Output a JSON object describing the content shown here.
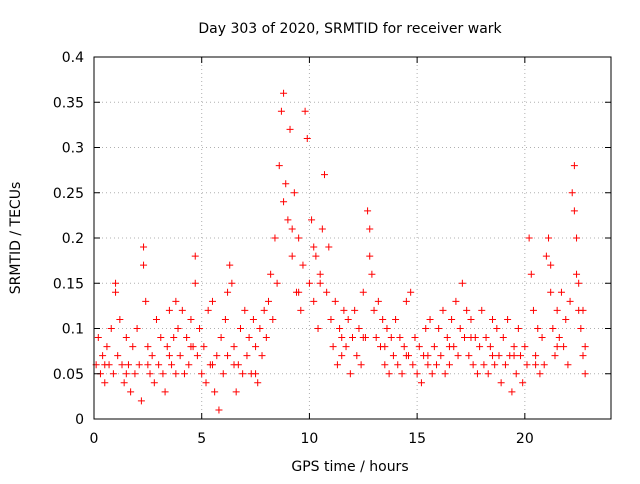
{
  "chart_data": {
    "type": "scatter",
    "title": "Day 303 of 2020, SRMTID for receiver wark",
    "xlabel": "GPS time / hours",
    "ylabel": "SRMTID / TECUs",
    "xlim": [
      0,
      24
    ],
    "ylim": [
      0,
      0.4
    ],
    "xticks": [
      0,
      5,
      10,
      15,
      20
    ],
    "xtick_labels": [
      "0",
      "5",
      "10",
      "15",
      "20"
    ],
    "yticks": [
      0,
      0.05,
      0.1,
      0.15,
      0.2,
      0.25,
      0.3,
      0.35,
      0.4
    ],
    "ytick_labels": [
      "0",
      "0.05",
      "0.1",
      "0.15",
      "0.2",
      "0.25",
      "0.3",
      "0.35",
      "0.4"
    ],
    "grid": true,
    "marker": "+",
    "marker_color": "#ff0000",
    "series": [
      {
        "name": "SRMTID",
        "points": [
          [
            0.1,
            0.06
          ],
          [
            0.2,
            0.09
          ],
          [
            0.3,
            0.05
          ],
          [
            0.4,
            0.07
          ],
          [
            0.5,
            0.04
          ],
          [
            0.6,
            0.08
          ],
          [
            0.7,
            0.06
          ],
          [
            0.8,
            0.1
          ],
          [
            0.9,
            0.05
          ],
          [
            1.0,
            0.14
          ],
          [
            1.0,
            0.15
          ],
          [
            1.1,
            0.07
          ],
          [
            1.2,
            0.11
          ],
          [
            1.3,
            0.06
          ],
          [
            1.4,
            0.04
          ],
          [
            1.5,
            0.09
          ],
          [
            1.6,
            0.06
          ],
          [
            1.7,
            0.03
          ],
          [
            1.8,
            0.08
          ],
          [
            1.9,
            0.05
          ],
          [
            2.0,
            0.1
          ],
          [
            2.1,
            0.06
          ],
          [
            2.2,
            0.02
          ],
          [
            2.3,
            0.19
          ],
          [
            2.3,
            0.17
          ],
          [
            2.4,
            0.13
          ],
          [
            2.5,
            0.08
          ],
          [
            2.6,
            0.05
          ],
          [
            2.7,
            0.07
          ],
          [
            2.8,
            0.04
          ],
          [
            2.9,
            0.11
          ],
          [
            3.0,
            0.06
          ],
          [
            3.1,
            0.09
          ],
          [
            3.2,
            0.05
          ],
          [
            3.3,
            0.03
          ],
          [
            3.4,
            0.08
          ],
          [
            3.5,
            0.12
          ],
          [
            3.6,
            0.06
          ],
          [
            3.7,
            0.09
          ],
          [
            3.8,
            0.05
          ],
          [
            3.9,
            0.1
          ],
          [
            4.0,
            0.07
          ],
          [
            4.1,
            0.12
          ],
          [
            4.2,
            0.05
          ],
          [
            4.3,
            0.09
          ],
          [
            4.4,
            0.06
          ],
          [
            4.5,
            0.11
          ],
          [
            4.6,
            0.08
          ],
          [
            4.7,
            0.15
          ],
          [
            4.7,
            0.18
          ],
          [
            4.8,
            0.07
          ],
          [
            4.9,
            0.1
          ],
          [
            5.0,
            0.05
          ],
          [
            5.1,
            0.08
          ],
          [
            5.2,
            0.04
          ],
          [
            5.3,
            0.12
          ],
          [
            5.4,
            0.06
          ],
          [
            5.5,
            0.13
          ],
          [
            5.6,
            0.03
          ],
          [
            5.7,
            0.07
          ],
          [
            5.8,
            0.01
          ],
          [
            5.9,
            0.09
          ],
          [
            6.0,
            0.05
          ],
          [
            6.1,
            0.11
          ],
          [
            6.2,
            0.07
          ],
          [
            6.3,
            0.17
          ],
          [
            6.4,
            0.15
          ],
          [
            6.5,
            0.08
          ],
          [
            6.6,
            0.03
          ],
          [
            6.7,
            0.06
          ],
          [
            6.8,
            0.1
          ],
          [
            6.9,
            0.05
          ],
          [
            7.0,
            0.12
          ],
          [
            7.1,
            0.07
          ],
          [
            7.2,
            0.09
          ],
          [
            7.3,
            0.05
          ],
          [
            7.4,
            0.11
          ],
          [
            7.5,
            0.08
          ],
          [
            7.6,
            0.04
          ],
          [
            7.7,
            0.1
          ],
          [
            7.8,
            0.07
          ],
          [
            7.9,
            0.12
          ],
          [
            8.0,
            0.09
          ],
          [
            8.1,
            0.13
          ],
          [
            8.2,
            0.16
          ],
          [
            8.3,
            0.11
          ],
          [
            8.4,
            0.2
          ],
          [
            8.5,
            0.15
          ],
          [
            8.6,
            0.28
          ],
          [
            8.7,
            0.34
          ],
          [
            8.8,
            0.36
          ],
          [
            8.9,
            0.26
          ],
          [
            9.0,
            0.22
          ],
          [
            9.1,
            0.32
          ],
          [
            9.2,
            0.18
          ],
          [
            9.3,
            0.25
          ],
          [
            9.4,
            0.14
          ],
          [
            9.5,
            0.2
          ],
          [
            9.6,
            0.12
          ],
          [
            9.7,
            0.17
          ],
          [
            9.8,
            0.34
          ],
          [
            9.9,
            0.31
          ],
          [
            10.0,
            0.15
          ],
          [
            10.1,
            0.22
          ],
          [
            10.2,
            0.13
          ],
          [
            10.3,
            0.18
          ],
          [
            10.4,
            0.1
          ],
          [
            10.5,
            0.16
          ],
          [
            10.6,
            0.21
          ],
          [
            10.7,
            0.27
          ],
          [
            10.8,
            0.14
          ],
          [
            10.9,
            0.19
          ],
          [
            11.0,
            0.11
          ],
          [
            11.1,
            0.08
          ],
          [
            11.2,
            0.13
          ],
          [
            11.3,
            0.06
          ],
          [
            11.4,
            0.1
          ],
          [
            11.5,
            0.07
          ],
          [
            11.6,
            0.12
          ],
          [
            11.7,
            0.08
          ],
          [
            11.8,
            0.11
          ],
          [
            11.9,
            0.05
          ],
          [
            12.0,
            0.09
          ],
          [
            12.1,
            0.12
          ],
          [
            12.2,
            0.07
          ],
          [
            12.3,
            0.1
          ],
          [
            12.4,
            0.06
          ],
          [
            12.5,
            0.14
          ],
          [
            12.6,
            0.09
          ],
          [
            12.7,
            0.23
          ],
          [
            12.8,
            0.21
          ],
          [
            12.9,
            0.16
          ],
          [
            13.0,
            0.12
          ],
          [
            13.1,
            0.09
          ],
          [
            13.2,
            0.13
          ],
          [
            13.3,
            0.08
          ],
          [
            13.4,
            0.11
          ],
          [
            13.5,
            0.06
          ],
          [
            13.6,
            0.1
          ],
          [
            13.7,
            0.05
          ],
          [
            13.8,
            0.09
          ],
          [
            13.9,
            0.07
          ],
          [
            14.0,
            0.11
          ],
          [
            14.1,
            0.06
          ],
          [
            14.2,
            0.09
          ],
          [
            14.3,
            0.05
          ],
          [
            14.4,
            0.08
          ],
          [
            14.5,
            0.13
          ],
          [
            14.6,
            0.07
          ],
          [
            14.7,
            0.14
          ],
          [
            14.8,
            0.06
          ],
          [
            14.9,
            0.09
          ],
          [
            15.0,
            0.05
          ],
          [
            15.1,
            0.08
          ],
          [
            15.2,
            0.04
          ],
          [
            15.3,
            0.07
          ],
          [
            15.4,
            0.1
          ],
          [
            15.5,
            0.06
          ],
          [
            15.6,
            0.11
          ],
          [
            15.7,
            0.05
          ],
          [
            15.8,
            0.08
          ],
          [
            15.9,
            0.06
          ],
          [
            16.0,
            0.1
          ],
          [
            16.1,
            0.07
          ],
          [
            16.2,
            0.12
          ],
          [
            16.3,
            0.05
          ],
          [
            16.4,
            0.09
          ],
          [
            16.5,
            0.06
          ],
          [
            16.6,
            0.11
          ],
          [
            16.7,
            0.08
          ],
          [
            16.8,
            0.13
          ],
          [
            16.9,
            0.07
          ],
          [
            17.0,
            0.1
          ],
          [
            17.1,
            0.15
          ],
          [
            17.2,
            0.09
          ],
          [
            17.3,
            0.12
          ],
          [
            17.4,
            0.07
          ],
          [
            17.5,
            0.11
          ],
          [
            17.6,
            0.06
          ],
          [
            17.7,
            0.09
          ],
          [
            17.8,
            0.05
          ],
          [
            17.9,
            0.08
          ],
          [
            18.0,
            0.12
          ],
          [
            18.1,
            0.06
          ],
          [
            18.2,
            0.09
          ],
          [
            18.3,
            0.05
          ],
          [
            18.4,
            0.08
          ],
          [
            18.5,
            0.11
          ],
          [
            18.6,
            0.06
          ],
          [
            18.7,
            0.1
          ],
          [
            18.8,
            0.07
          ],
          [
            18.9,
            0.04
          ],
          [
            19.0,
            0.09
          ],
          [
            19.1,
            0.06
          ],
          [
            19.2,
            0.11
          ],
          [
            19.3,
            0.07
          ],
          [
            19.4,
            0.03
          ],
          [
            19.5,
            0.08
          ],
          [
            19.6,
            0.05
          ],
          [
            19.7,
            0.1
          ],
          [
            19.8,
            0.07
          ],
          [
            19.9,
            0.04
          ],
          [
            20.0,
            0.08
          ],
          [
            20.1,
            0.06
          ],
          [
            20.2,
            0.2
          ],
          [
            20.3,
            0.16
          ],
          [
            20.4,
            0.12
          ],
          [
            20.5,
            0.07
          ],
          [
            20.6,
            0.1
          ],
          [
            20.7,
            0.05
          ],
          [
            20.8,
            0.09
          ],
          [
            20.9,
            0.06
          ],
          [
            21.0,
            0.18
          ],
          [
            21.1,
            0.2
          ],
          [
            21.2,
            0.14
          ],
          [
            21.3,
            0.1
          ],
          [
            21.4,
            0.07
          ],
          [
            21.5,
            0.12
          ],
          [
            21.6,
            0.09
          ],
          [
            21.7,
            0.14
          ],
          [
            21.8,
            0.08
          ],
          [
            21.9,
            0.11
          ],
          [
            22.0,
            0.06
          ],
          [
            22.1,
            0.13
          ],
          [
            22.2,
            0.25
          ],
          [
            22.3,
            0.28
          ],
          [
            22.3,
            0.23
          ],
          [
            22.4,
            0.2
          ],
          [
            22.5,
            0.15
          ],
          [
            22.6,
            0.1
          ],
          [
            22.7,
            0.07
          ],
          [
            22.7,
            0.12
          ],
          [
            22.8,
            0.05
          ],
          [
            22.8,
            0.08
          ],
          [
            0.5,
            0.06
          ],
          [
            1.5,
            0.05
          ],
          [
            2.5,
            0.06
          ],
          [
            3.5,
            0.07
          ],
          [
            4.5,
            0.08
          ],
          [
            5.5,
            0.06
          ],
          [
            6.5,
            0.06
          ],
          [
            7.5,
            0.05
          ],
          [
            9.5,
            0.14
          ],
          [
            10.5,
            0.15
          ],
          [
            11.5,
            0.09
          ],
          [
            12.5,
            0.09
          ],
          [
            13.5,
            0.08
          ],
          [
            14.5,
            0.07
          ],
          [
            15.5,
            0.07
          ],
          [
            16.5,
            0.08
          ],
          [
            17.5,
            0.09
          ],
          [
            18.5,
            0.07
          ],
          [
            19.5,
            0.07
          ],
          [
            20.5,
            0.06
          ],
          [
            21.5,
            0.08
          ],
          [
            22.5,
            0.12
          ],
          [
            8.8,
            0.24
          ],
          [
            9.2,
            0.21
          ],
          [
            10.2,
            0.19
          ],
          [
            12.8,
            0.18
          ],
          [
            21.2,
            0.17
          ],
          [
            22.4,
            0.16
          ],
          [
            6.2,
            0.14
          ],
          [
            3.8,
            0.13
          ]
        ]
      }
    ]
  }
}
